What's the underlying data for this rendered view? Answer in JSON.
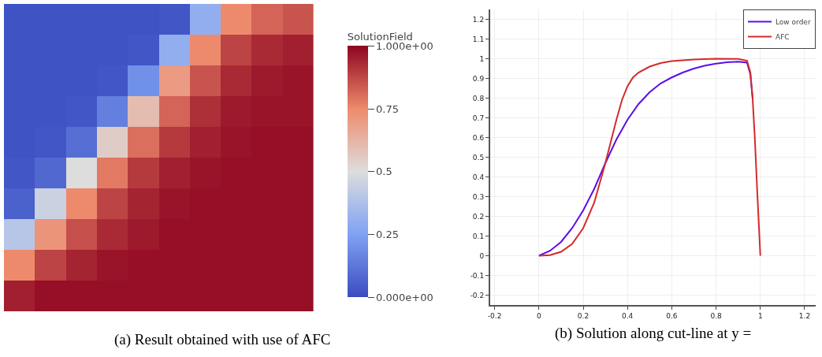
{
  "chart_data": [
    {
      "type": "heatmap",
      "annotations": [
        "(a) Result obtained with use of AFC"
      ],
      "clabel": "SolutionField",
      "categories": [
        null,
        null,
        null,
        null,
        null,
        null,
        null,
        null,
        null,
        null
      ],
      "y_categories": [
        null,
        null,
        null,
        null,
        null,
        null,
        null,
        null,
        null,
        null
      ],
      "cells": [
        [
          0.02,
          0.02,
          0.02,
          0.02,
          0.02,
          0.03,
          0.3,
          0.75,
          0.82,
          0.85
        ],
        [
          0.02,
          0.02,
          0.02,
          0.02,
          0.03,
          0.3,
          0.75,
          0.88,
          0.93,
          0.95
        ],
        [
          0.02,
          0.02,
          0.02,
          0.03,
          0.2,
          0.7,
          0.85,
          0.93,
          0.96,
          0.97
        ],
        [
          0.02,
          0.02,
          0.03,
          0.15,
          0.6,
          0.82,
          0.92,
          0.96,
          0.97,
          0.97
        ],
        [
          0.02,
          0.03,
          0.1,
          0.55,
          0.8,
          0.9,
          0.95,
          0.97,
          0.98,
          0.98
        ],
        [
          0.03,
          0.08,
          0.5,
          0.78,
          0.9,
          0.95,
          0.97,
          0.98,
          0.98,
          0.98
        ],
        [
          0.06,
          0.45,
          0.75,
          0.88,
          0.94,
          0.97,
          0.98,
          0.98,
          0.98,
          0.98
        ],
        [
          0.4,
          0.72,
          0.86,
          0.93,
          0.96,
          0.98,
          0.98,
          0.98,
          0.98,
          0.98
        ],
        [
          0.75,
          0.88,
          0.94,
          0.97,
          0.98,
          0.98,
          0.98,
          0.98,
          0.98,
          0.98
        ],
        [
          0.95,
          0.98,
          0.98,
          0.98,
          0.98,
          0.98,
          0.98,
          0.98,
          0.98,
          0.98
        ]
      ],
      "clim": [
        0,
        1
      ],
      "cticks": [
        {
          "value": 0,
          "label": "0.000e+00"
        },
        0.25,
        0.5,
        0.75,
        {
          "value": 1,
          "label": "1.000e+00"
        }
      ]
    },
    {
      "type": "line",
      "annotations": [
        "(b) Solution along cut-line at y ="
      ],
      "grid": true,
      "legend": "top right",
      "xlim": [
        -0.22,
        1.25
      ],
      "ylim": [
        -0.25,
        1.25
      ],
      "xticks": [
        -0.2,
        0,
        0.2,
        0.4,
        0.6,
        0.8,
        1,
        1.2
      ],
      "yticks": [
        -0.2,
        -0.1,
        0,
        0.1,
        0.2,
        0.3,
        0.4,
        0.5,
        0.6,
        0.7,
        0.8,
        0.9,
        1,
        1.1,
        1.2
      ],
      "series": [
        {
          "name": "Low order",
          "color": "#5b0ee8",
          "x": [
            0,
            0.05,
            0.1,
            0.15,
            0.2,
            0.25,
            0.3,
            0.35,
            0.4,
            0.45,
            0.5,
            0.55,
            0.6,
            0.65,
            0.7,
            0.75,
            0.8,
            0.85,
            0.9,
            0.94,
            0.955,
            0.965
          ],
          "values": [
            0,
            0.025,
            0.07,
            0.14,
            0.23,
            0.34,
            0.47,
            0.59,
            0.69,
            0.77,
            0.83,
            0.875,
            0.905,
            0.93,
            0.95,
            0.965,
            0.975,
            0.982,
            0.985,
            0.98,
            0.92,
            0.8
          ]
        },
        {
          "name": "AFC",
          "color": "#d42a2a",
          "x": [
            0,
            0.05,
            0.1,
            0.15,
            0.2,
            0.25,
            0.3,
            0.35,
            0.375,
            0.4,
            0.425,
            0.45,
            0.5,
            0.55,
            0.6,
            0.7,
            0.8,
            0.9,
            0.94,
            0.955,
            0.965,
            0.975,
            0.985,
            1.0
          ],
          "values": [
            0,
            0.003,
            0.02,
            0.06,
            0.14,
            0.27,
            0.47,
            0.69,
            0.79,
            0.86,
            0.905,
            0.93,
            0.96,
            0.978,
            0.988,
            0.996,
            1.0,
            0.999,
            0.99,
            0.93,
            0.8,
            0.6,
            0.35,
            0
          ]
        }
      ]
    }
  ]
}
